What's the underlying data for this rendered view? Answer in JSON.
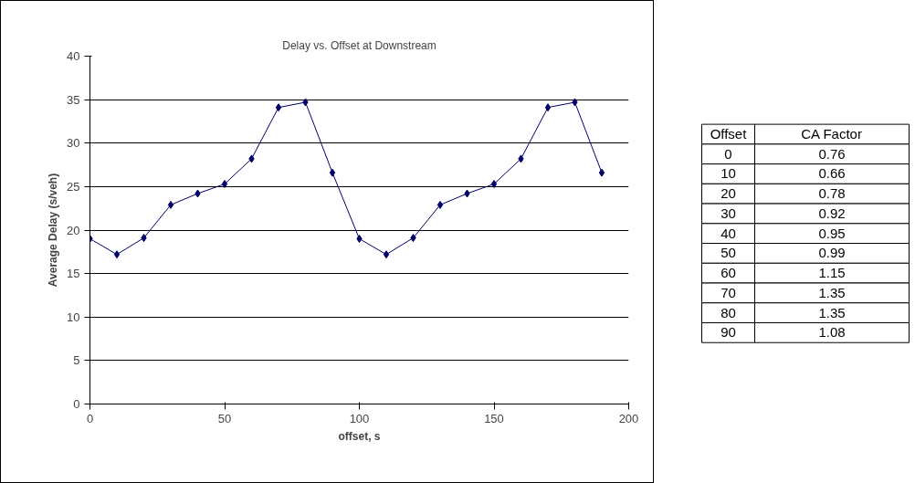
{
  "chart_data": [
    {
      "type": "line",
      "title": "Delay vs. Offset at Downstream",
      "xlabel": "offset, s",
      "ylabel": "Average Delay (s/veh)",
      "x": [
        0,
        10,
        20,
        30,
        40,
        50,
        60,
        70,
        80,
        90,
        100,
        110,
        120,
        130,
        140,
        150,
        160,
        170,
        180,
        190
      ],
      "series": [
        {
          "color": "#000066",
          "values": [
            19.0,
            17.2,
            19.1,
            22.9,
            24.2,
            25.3,
            28.2,
            34.1,
            34.7,
            26.6,
            19.0,
            17.2,
            19.1,
            22.9,
            24.2,
            25.3,
            28.2,
            34.1,
            34.7,
            26.6
          ]
        }
      ],
      "xlim": [
        0,
        200
      ],
      "xticks": [
        0,
        50,
        100,
        150,
        200
      ],
      "ylim": [
        0,
        40
      ],
      "yticks": [
        0,
        5,
        10,
        15,
        20,
        25,
        30,
        35,
        40
      ],
      "grid": "y",
      "marker": "diamond",
      "line_style": "solid"
    },
    {
      "type": "heatmap",
      "ylabel": "Offset",
      "categories": [
        "CA Factor"
      ],
      "y_categories": [
        "0",
        "10",
        "20",
        "30",
        "40",
        "50",
        "60",
        "70",
        "80",
        "90"
      ],
      "cells": [
        [
          0.76
        ],
        [
          0.66
        ],
        [
          0.78
        ],
        [
          0.92
        ],
        [
          0.95
        ],
        [
          0.99
        ],
        [
          1.15
        ],
        [
          1.35
        ],
        [
          1.35
        ],
        [
          1.08
        ]
      ],
      "data_labels": true
    }
  ]
}
